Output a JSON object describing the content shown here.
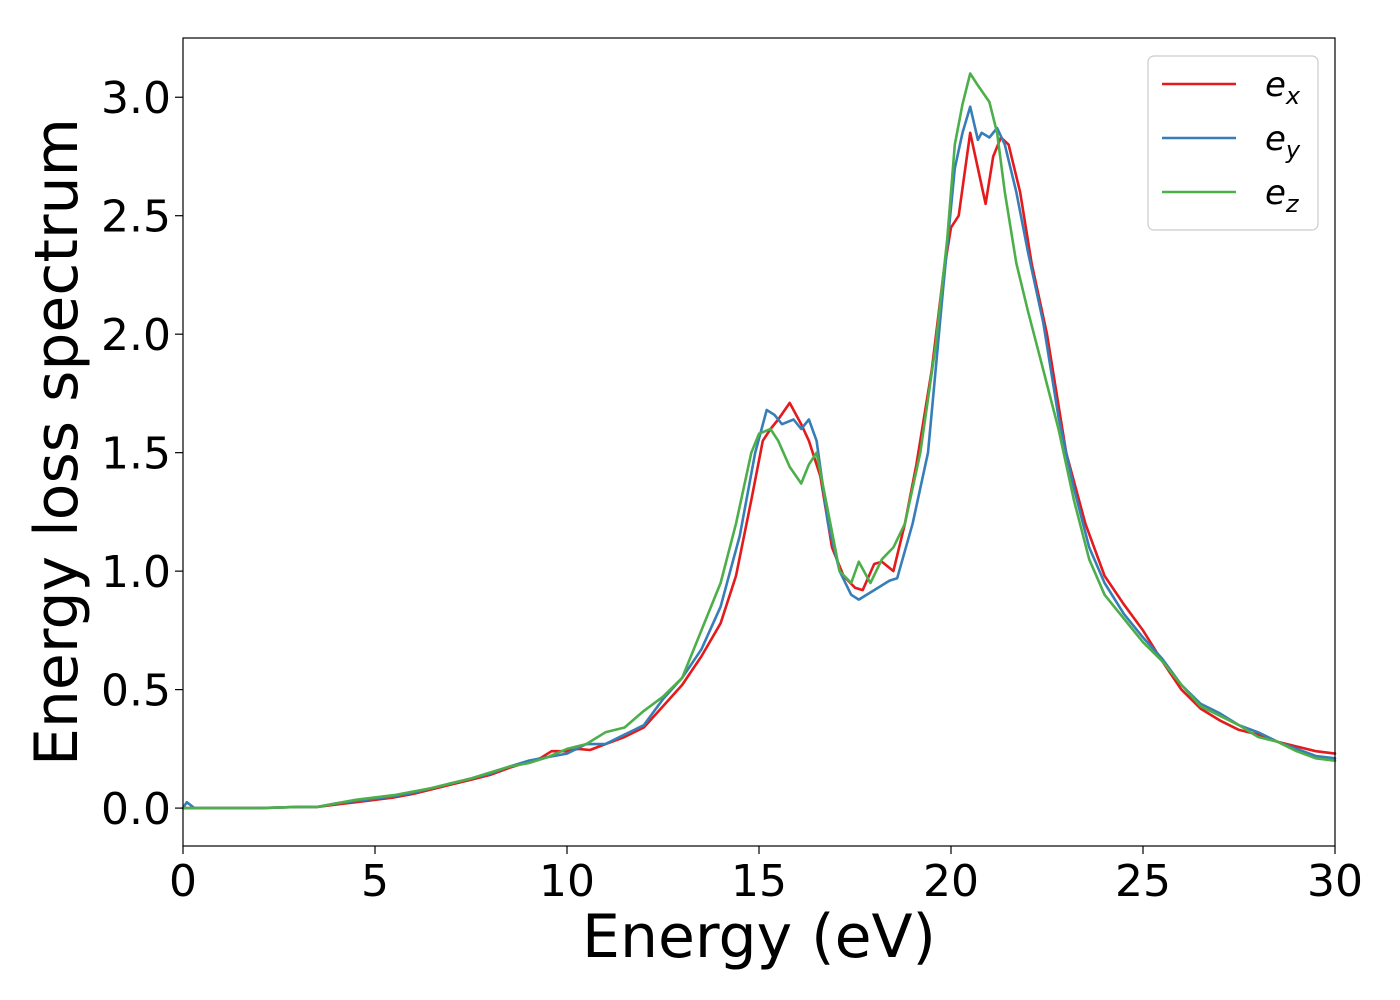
{
  "chart_data": {
    "type": "line",
    "title": "",
    "xlabel": "Energy (eV)",
    "ylabel": "Energy loss spectrum",
    "xlim": [
      0,
      30
    ],
    "ylim": [
      -0.16,
      3.25
    ],
    "xticks": [
      "0",
      "5",
      "10",
      "15",
      "20",
      "25",
      "30"
    ],
    "yticks": [
      "0.0",
      "0.5",
      "1.0",
      "1.5",
      "2.0",
      "2.5",
      "3.0"
    ],
    "grid": false,
    "legend_position": "top-right",
    "series": [
      {
        "name": "e_x",
        "legend_base": "e",
        "legend_sub": "x",
        "color": "#e41a1c",
        "points": [
          [
            0,
            0.0
          ],
          [
            0.5,
            0.0
          ],
          [
            1,
            0.0
          ],
          [
            2,
            0.0
          ],
          [
            3,
            0.005
          ],
          [
            3.5,
            0.005
          ],
          [
            4,
            0.015
          ],
          [
            4.5,
            0.025
          ],
          [
            5,
            0.035
          ],
          [
            5.5,
            0.045
          ],
          [
            6,
            0.06
          ],
          [
            6.5,
            0.08
          ],
          [
            7,
            0.1
          ],
          [
            7.5,
            0.12
          ],
          [
            8,
            0.14
          ],
          [
            8.5,
            0.17
          ],
          [
            9,
            0.195
          ],
          [
            9.3,
            0.21
          ],
          [
            9.6,
            0.24
          ],
          [
            10,
            0.24
          ],
          [
            10.3,
            0.25
          ],
          [
            10.6,
            0.245
          ],
          [
            11,
            0.27
          ],
          [
            11.5,
            0.3
          ],
          [
            12,
            0.34
          ],
          [
            12.5,
            0.43
          ],
          [
            13,
            0.52
          ],
          [
            13.5,
            0.64
          ],
          [
            14,
            0.78
          ],
          [
            14.4,
            0.98
          ],
          [
            14.8,
            1.3
          ],
          [
            15.1,
            1.55
          ],
          [
            15.3,
            1.6
          ],
          [
            15.5,
            1.64
          ],
          [
            15.8,
            1.71
          ],
          [
            16.1,
            1.62
          ],
          [
            16.3,
            1.55
          ],
          [
            16.6,
            1.4
          ],
          [
            16.9,
            1.1
          ],
          [
            17.2,
            0.98
          ],
          [
            17.5,
            0.93
          ],
          [
            17.7,
            0.92
          ],
          [
            18,
            1.03
          ],
          [
            18.2,
            1.04
          ],
          [
            18.5,
            1.0
          ],
          [
            18.8,
            1.2
          ],
          [
            19.1,
            1.45
          ],
          [
            19.5,
            1.85
          ],
          [
            19.8,
            2.25
          ],
          [
            20,
            2.45
          ],
          [
            20.2,
            2.5
          ],
          [
            20.5,
            2.85
          ],
          [
            20.7,
            2.7
          ],
          [
            20.9,
            2.55
          ],
          [
            21.1,
            2.75
          ],
          [
            21.3,
            2.83
          ],
          [
            21.5,
            2.8
          ],
          [
            21.8,
            2.6
          ],
          [
            22.1,
            2.3
          ],
          [
            22.5,
            2.0
          ],
          [
            23,
            1.5
          ],
          [
            23.5,
            1.2
          ],
          [
            24,
            0.98
          ],
          [
            24.5,
            0.86
          ],
          [
            25,
            0.75
          ],
          [
            25.5,
            0.62
          ],
          [
            26,
            0.5
          ],
          [
            26.5,
            0.42
          ],
          [
            27,
            0.37
          ],
          [
            27.5,
            0.33
          ],
          [
            28,
            0.31
          ],
          [
            28.5,
            0.28
          ],
          [
            29,
            0.26
          ],
          [
            29.5,
            0.24
          ],
          [
            30,
            0.23
          ]
        ]
      },
      {
        "name": "e_y",
        "legend_base": "e",
        "legend_sub": "y",
        "color": "#377eb8",
        "points": [
          [
            0,
            0.0
          ],
          [
            0.1,
            0.025
          ],
          [
            0.3,
            0.0
          ],
          [
            1,
            0.0
          ],
          [
            2,
            0.0
          ],
          [
            3,
            0.005
          ],
          [
            3.5,
            0.005
          ],
          [
            4,
            0.02
          ],
          [
            4.5,
            0.03
          ],
          [
            5,
            0.04
          ],
          [
            5.5,
            0.05
          ],
          [
            6,
            0.065
          ],
          [
            6.5,
            0.085
          ],
          [
            7,
            0.105
          ],
          [
            7.5,
            0.125
          ],
          [
            8,
            0.145
          ],
          [
            8.5,
            0.175
          ],
          [
            9,
            0.2
          ],
          [
            9.5,
            0.215
          ],
          [
            10,
            0.23
          ],
          [
            10.5,
            0.27
          ],
          [
            11,
            0.27
          ],
          [
            11.5,
            0.31
          ],
          [
            12,
            0.35
          ],
          [
            12.5,
            0.46
          ],
          [
            13,
            0.55
          ],
          [
            13.5,
            0.67
          ],
          [
            14,
            0.85
          ],
          [
            14.5,
            1.15
          ],
          [
            14.9,
            1.5
          ],
          [
            15.2,
            1.68
          ],
          [
            15.4,
            1.66
          ],
          [
            15.6,
            1.62
          ],
          [
            15.9,
            1.64
          ],
          [
            16.1,
            1.6
          ],
          [
            16.3,
            1.64
          ],
          [
            16.5,
            1.55
          ],
          [
            16.8,
            1.2
          ],
          [
            17.1,
            1.0
          ],
          [
            17.4,
            0.9
          ],
          [
            17.6,
            0.88
          ],
          [
            18,
            0.92
          ],
          [
            18.4,
            0.96
          ],
          [
            18.6,
            0.97
          ],
          [
            19,
            1.2
          ],
          [
            19.4,
            1.5
          ],
          [
            19.8,
            2.2
          ],
          [
            20.1,
            2.7
          ],
          [
            20.3,
            2.85
          ],
          [
            20.5,
            2.96
          ],
          [
            20.7,
            2.82
          ],
          [
            20.8,
            2.85
          ],
          [
            21,
            2.83
          ],
          [
            21.2,
            2.87
          ],
          [
            21.4,
            2.8
          ],
          [
            21.7,
            2.6
          ],
          [
            22,
            2.35
          ],
          [
            22.4,
            2.05
          ],
          [
            22.8,
            1.65
          ],
          [
            23.2,
            1.35
          ],
          [
            23.6,
            1.1
          ],
          [
            24,
            0.95
          ],
          [
            24.5,
            0.82
          ],
          [
            25,
            0.72
          ],
          [
            25.5,
            0.63
          ],
          [
            26,
            0.52
          ],
          [
            26.5,
            0.44
          ],
          [
            27,
            0.4
          ],
          [
            27.5,
            0.35
          ],
          [
            28,
            0.32
          ],
          [
            28.5,
            0.28
          ],
          [
            29,
            0.25
          ],
          [
            29.5,
            0.22
          ],
          [
            30,
            0.21
          ]
        ]
      },
      {
        "name": "e_z",
        "legend_base": "e",
        "legend_sub": "z",
        "color": "#4daf4a",
        "points": [
          [
            0,
            0.0
          ],
          [
            1,
            0.0
          ],
          [
            2,
            0.0
          ],
          [
            3,
            0.005
          ],
          [
            3.5,
            0.005
          ],
          [
            4,
            0.02
          ],
          [
            4.5,
            0.035
          ],
          [
            5,
            0.045
          ],
          [
            5.5,
            0.055
          ],
          [
            6,
            0.07
          ],
          [
            6.5,
            0.085
          ],
          [
            7,
            0.105
          ],
          [
            7.5,
            0.125
          ],
          [
            8,
            0.15
          ],
          [
            8.5,
            0.175
          ],
          [
            9,
            0.19
          ],
          [
            9.5,
            0.215
          ],
          [
            10,
            0.25
          ],
          [
            10.5,
            0.27
          ],
          [
            11,
            0.32
          ],
          [
            11.5,
            0.34
          ],
          [
            12,
            0.41
          ],
          [
            12.5,
            0.47
          ],
          [
            13,
            0.55
          ],
          [
            13.5,
            0.75
          ],
          [
            14,
            0.95
          ],
          [
            14.4,
            1.2
          ],
          [
            14.8,
            1.5
          ],
          [
            15,
            1.58
          ],
          [
            15.3,
            1.6
          ],
          [
            15.5,
            1.55
          ],
          [
            15.8,
            1.44
          ],
          [
            16.1,
            1.37
          ],
          [
            16.3,
            1.45
          ],
          [
            16.5,
            1.5
          ],
          [
            16.8,
            1.25
          ],
          [
            17.1,
            1.0
          ],
          [
            17.4,
            0.95
          ],
          [
            17.6,
            1.04
          ],
          [
            17.9,
            0.95
          ],
          [
            18.2,
            1.05
          ],
          [
            18.5,
            1.1
          ],
          [
            18.8,
            1.2
          ],
          [
            19.2,
            1.5
          ],
          [
            19.6,
            1.95
          ],
          [
            19.9,
            2.4
          ],
          [
            20.1,
            2.8
          ],
          [
            20.3,
            2.97
          ],
          [
            20.5,
            3.1
          ],
          [
            20.7,
            3.05
          ],
          [
            21,
            2.98
          ],
          [
            21.2,
            2.85
          ],
          [
            21.4,
            2.6
          ],
          [
            21.7,
            2.3
          ],
          [
            22,
            2.1
          ],
          [
            22.4,
            1.85
          ],
          [
            22.8,
            1.6
          ],
          [
            23.2,
            1.3
          ],
          [
            23.6,
            1.05
          ],
          [
            24,
            0.9
          ],
          [
            24.5,
            0.8
          ],
          [
            25,
            0.7
          ],
          [
            25.5,
            0.62
          ],
          [
            26,
            0.52
          ],
          [
            26.5,
            0.43
          ],
          [
            27,
            0.39
          ],
          [
            27.5,
            0.35
          ],
          [
            28,
            0.3
          ],
          [
            28.5,
            0.28
          ],
          [
            29,
            0.24
          ],
          [
            29.5,
            0.21
          ],
          [
            30,
            0.2
          ]
        ]
      }
    ]
  }
}
